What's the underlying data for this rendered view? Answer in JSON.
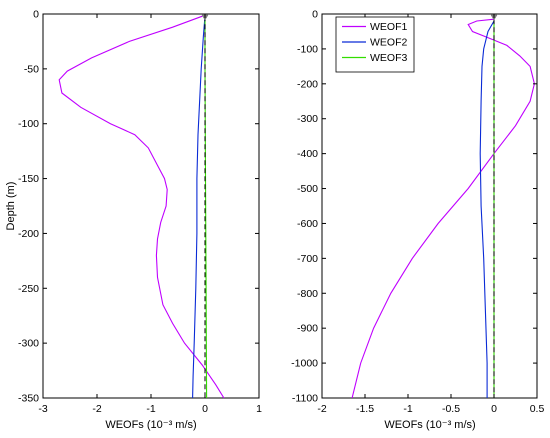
{
  "chart_data": [
    {
      "type": "line",
      "title": "",
      "xlabel": "WEOFs (10⁻³ m/s)",
      "ylabel": "Depth (m)",
      "xlim": [
        -3,
        1
      ],
      "ylim": [
        -350,
        0
      ],
      "xticks": [
        -3,
        -2,
        -1,
        0,
        1
      ],
      "yticks": [
        0,
        -50,
        -100,
        -150,
        -200,
        -250,
        -300,
        -350
      ],
      "legend": null,
      "grid": false,
      "series": [
        {
          "key": "WEOF1",
          "color": "#bf00ff",
          "points": [
            [
              -0.05,
              -2
            ],
            [
              -0.6,
              -12
            ],
            [
              -1.4,
              -25
            ],
            [
              -2.1,
              -40
            ],
            [
              -2.55,
              -52
            ],
            [
              -2.7,
              -60
            ],
            [
              -2.65,
              -72
            ],
            [
              -2.3,
              -85
            ],
            [
              -1.75,
              -100
            ],
            [
              -1.3,
              -110
            ],
            [
              -1.05,
              -122
            ],
            [
              -0.88,
              -138
            ],
            [
              -0.75,
              -150
            ],
            [
              -0.7,
              -160
            ],
            [
              -0.72,
              -175
            ],
            [
              -0.82,
              -190
            ],
            [
              -0.88,
              -205
            ],
            [
              -0.9,
              -220
            ],
            [
              -0.88,
              -240
            ],
            [
              -0.78,
              -265
            ],
            [
              -0.6,
              -282
            ],
            [
              -0.38,
              -300
            ],
            [
              -0.05,
              -320
            ],
            [
              0.2,
              -338
            ],
            [
              0.35,
              -350
            ]
          ]
        },
        {
          "key": "WEOF2",
          "color": "#0a2bd6",
          "points": [
            [
              0.0,
              -2
            ],
            [
              -0.03,
              -20
            ],
            [
              -0.07,
              -50
            ],
            [
              -0.1,
              -80
            ],
            [
              -0.13,
              -110
            ],
            [
              -0.15,
              -150
            ],
            [
              -0.15,
              -200
            ],
            [
              -0.17,
              -250
            ],
            [
              -0.2,
              -300
            ],
            [
              -0.22,
              -330
            ],
            [
              -0.23,
              -350
            ]
          ]
        },
        {
          "key": "WEOF3",
          "color": "#33dd00",
          "points": [
            [
              0.0,
              -2
            ],
            [
              0.0,
              -50
            ],
            [
              0.01,
              -150
            ],
            [
              0.02,
              -250
            ],
            [
              0.03,
              -350
            ]
          ]
        }
      ]
    },
    {
      "type": "line",
      "title": "",
      "xlabel": "WEOFs (10⁻³ m/s)",
      "ylabel": "",
      "xlim": [
        -2,
        0.5
      ],
      "ylim": [
        -1100,
        0
      ],
      "xticks": [
        -2,
        -1.5,
        -1,
        -0.5,
        0,
        0.5
      ],
      "yticks": [
        0,
        -100,
        -200,
        -300,
        -400,
        -500,
        -600,
        -700,
        -800,
        -900,
        -1000,
        -1100
      ],
      "legend": "top-left",
      "grid": false,
      "series": [
        {
          "name": "WEOF1",
          "color": "#bf00ff",
          "points": [
            [
              0.0,
              -15
            ],
            [
              -0.2,
              -20
            ],
            [
              -0.3,
              -30
            ],
            [
              -0.25,
              -50
            ],
            [
              -0.05,
              -70
            ],
            [
              0.15,
              -90
            ],
            [
              0.3,
              -120
            ],
            [
              0.42,
              -150
            ],
            [
              0.47,
              -200
            ],
            [
              0.42,
              -250
            ],
            [
              0.25,
              -320
            ],
            [
              0.0,
              -400
            ],
            [
              -0.3,
              -500
            ],
            [
              -0.65,
              -600
            ],
            [
              -0.95,
              -700
            ],
            [
              -1.2,
              -800
            ],
            [
              -1.4,
              -900
            ],
            [
              -1.55,
              -1000
            ],
            [
              -1.65,
              -1100
            ]
          ]
        },
        {
          "name": "WEOF2",
          "color": "#0a2bd6",
          "points": [
            [
              0.0,
              -20
            ],
            [
              -0.07,
              -50
            ],
            [
              -0.12,
              -100
            ],
            [
              -0.14,
              -150
            ],
            [
              -0.15,
              -250
            ],
            [
              -0.16,
              -400
            ],
            [
              -0.15,
              -550
            ],
            [
              -0.12,
              -700
            ],
            [
              -0.1,
              -850
            ],
            [
              -0.08,
              -1000
            ],
            [
              -0.08,
              -1100
            ]
          ]
        },
        {
          "name": "WEOF3",
          "color": "#33dd00",
          "points": [
            [
              0.0,
              -20
            ],
            [
              0.0,
              -300
            ],
            [
              0.0,
              -700
            ],
            [
              0.0,
              -1100
            ]
          ]
        }
      ]
    }
  ]
}
